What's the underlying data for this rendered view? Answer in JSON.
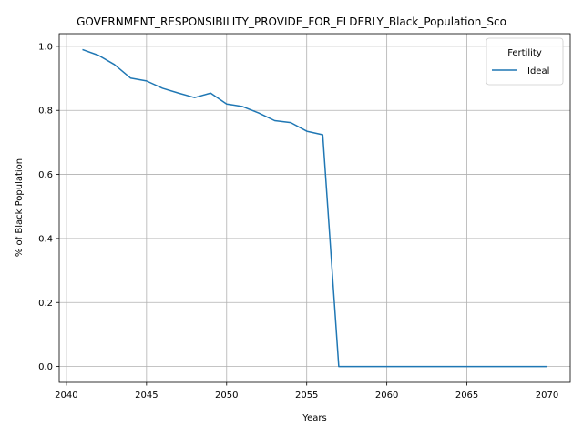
{
  "chart_data": {
    "type": "line",
    "title": "GOVERNMENT_RESPONSIBILITY_PROVIDE_FOR_ELDERLY_Black_Population_Sco",
    "xlabel": "Years",
    "ylabel": "% of Black Population",
    "xlim": [
      2039.55,
      2071.45
    ],
    "ylim": [
      -0.0495,
      1.0395
    ],
    "xticks": [
      2040,
      2045,
      2050,
      2055,
      2060,
      2065,
      2070
    ],
    "yticks": [
      0.0,
      0.2,
      0.4,
      0.6,
      0.8,
      1.0
    ],
    "xtick_labels": [
      "2040",
      "2045",
      "2050",
      "2055",
      "2060",
      "2065",
      "2070"
    ],
    "ytick_labels": [
      "0.0",
      "0.2",
      "0.4",
      "0.6",
      "0.8",
      "1.0"
    ],
    "grid": true,
    "legend": {
      "title": "Fertility",
      "placement": "top-right"
    },
    "colors": {
      "series": "#1f77b4",
      "grid": "#b0b0b0"
    },
    "x": [
      2041,
      2042,
      2043,
      2044,
      2045,
      2046,
      2047,
      2048,
      2049,
      2050,
      2051,
      2052,
      2053,
      2054,
      2055,
      2056,
      2057,
      2058,
      2059,
      2060,
      2061,
      2062,
      2063,
      2064,
      2065,
      2066,
      2067,
      2068,
      2069,
      2070
    ],
    "series": [
      {
        "name": "Ideal",
        "values": [
          0.99,
          0.972,
          0.943,
          0.901,
          0.892,
          0.869,
          0.854,
          0.84,
          0.854,
          0.82,
          0.812,
          0.792,
          0.768,
          0.762,
          0.735,
          0.724,
          0.0,
          0.0,
          0.0,
          0.0,
          0.0,
          0.0,
          0.0,
          0.0,
          0.0,
          0.0,
          0.0,
          0.0,
          0.0,
          0.0
        ]
      }
    ]
  }
}
